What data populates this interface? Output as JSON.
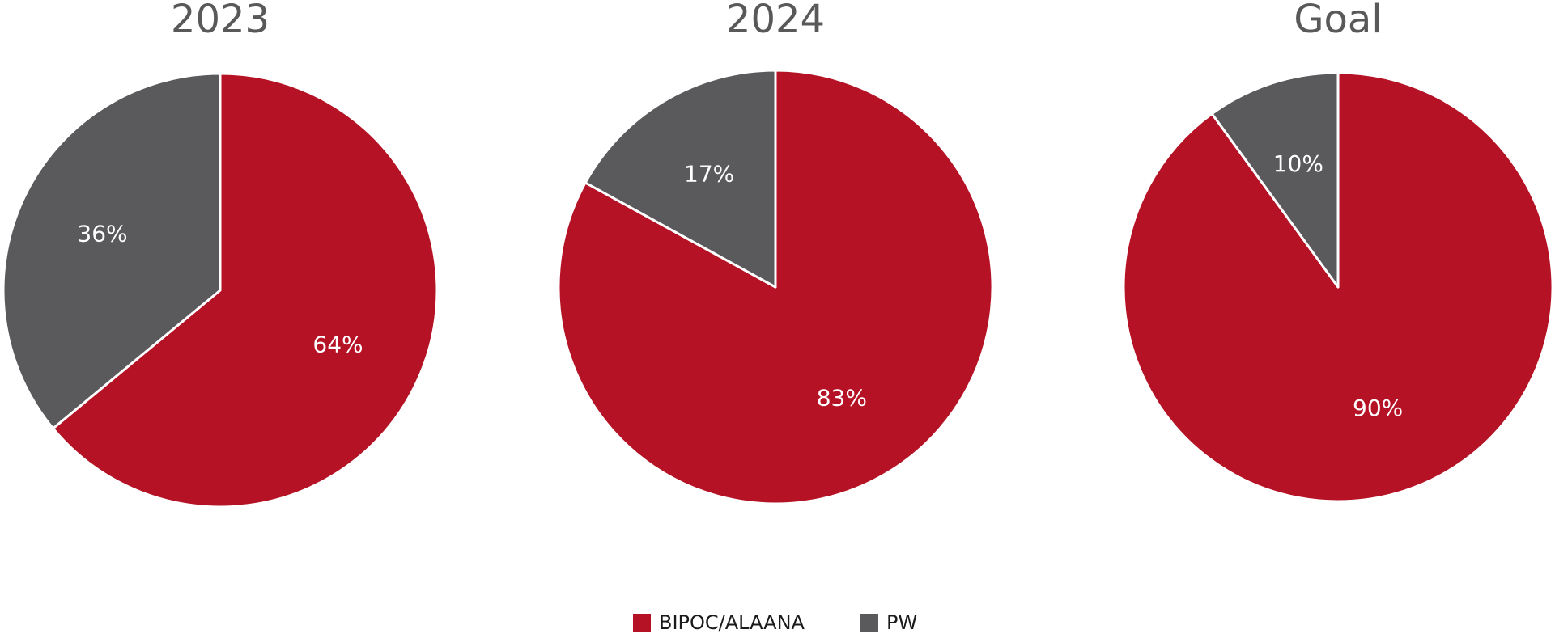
{
  "chart_data": [
    {
      "type": "pie",
      "title": "2023",
      "categories": [
        "BIPOC/ALAANA",
        "PW"
      ],
      "values": [
        64,
        36
      ],
      "value_labels": [
        "64%",
        "36%"
      ],
      "colors": [
        "#b51325",
        "#5a5a5c"
      ]
    },
    {
      "type": "pie",
      "title": "2024",
      "categories": [
        "BIPOC/ALAANA",
        "PW"
      ],
      "values": [
        83,
        17
      ],
      "value_labels": [
        "83%",
        "17%"
      ],
      "colors": [
        "#b51325",
        "#5a5a5c"
      ]
    },
    {
      "type": "pie",
      "title": "Goal",
      "categories": [
        "BIPOC/ALAANA",
        "PW"
      ],
      "values": [
        90,
        10
      ],
      "value_labels": [
        "90%",
        "10%"
      ],
      "colors": [
        "#b51325",
        "#5a5a5c"
      ]
    }
  ]
}
